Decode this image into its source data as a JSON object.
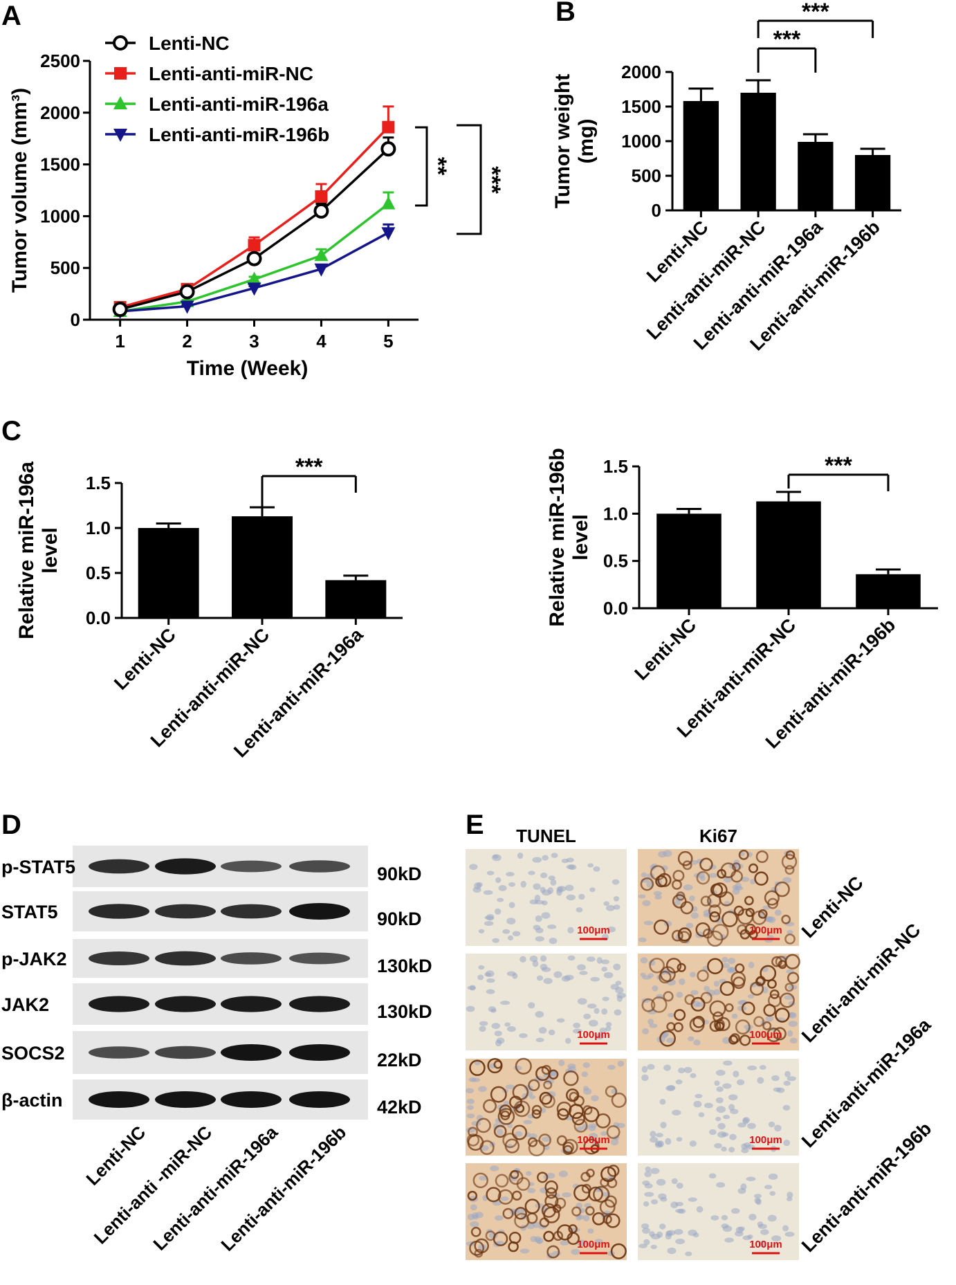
{
  "panels": {
    "A": "A",
    "B": "B",
    "C": "C",
    "D": "D",
    "E": "E"
  },
  "colors": {
    "lenti_nc": "#000000",
    "anti_nc": "#e8201c",
    "anti_196a": "#2ec42e",
    "anti_196b": "#15158a",
    "bar_fill": "#000000",
    "scale_bar": "#dd1111"
  },
  "chart_data": [
    {
      "id": "A",
      "type": "line",
      "xlabel": "Time (Week)",
      "ylabel": "Tumor volume (mm³)",
      "x": [
        1,
        2,
        3,
        4,
        5
      ],
      "xlim": [
        0.55,
        5.45
      ],
      "ylim": [
        0,
        2500
      ],
      "yticks": [
        0,
        500,
        1000,
        1500,
        2000,
        2500
      ],
      "legend_position": "top-left",
      "series": [
        {
          "name": "Lenti-NC",
          "marker": "circle-open",
          "color": "#000000",
          "values": [
            100,
            270,
            590,
            1050,
            1650
          ],
          "errors": [
            15,
            20,
            45,
            70,
            110
          ]
        },
        {
          "name": "Lenti-anti-miR-NC",
          "marker": "square",
          "color": "#e8201c",
          "values": [
            120,
            295,
            720,
            1190,
            1860
          ],
          "errors": [
            15,
            25,
            75,
            120,
            200
          ]
        },
        {
          "name": "Lenti-anti-miR-196a",
          "marker": "triangle-up",
          "color": "#2ec42e",
          "values": [
            80,
            175,
            390,
            620,
            1120
          ],
          "errors": [
            12,
            15,
            25,
            60,
            110
          ]
        },
        {
          "name": "Lenti-anti-miR-196b",
          "marker": "triangle-down",
          "color": "#15158a",
          "values": [
            80,
            130,
            305,
            490,
            840
          ],
          "errors": [
            10,
            12,
            20,
            25,
            80
          ]
        }
      ],
      "significance": [
        {
          "label": "**"
        },
        {
          "label": "***"
        }
      ]
    },
    {
      "id": "B",
      "type": "bar",
      "ylabel": "Tumor weight (mg)",
      "ylim": [
        0,
        2000
      ],
      "yticks": [
        0,
        500,
        1000,
        1500,
        2000
      ],
      "categories": [
        "Lenti-NC",
        "Lenti-anti-miR-NC",
        "Lenti-anti-miR-196a",
        "Lenti-anti-miR-196b"
      ],
      "values": [
        1580,
        1700,
        990,
        800
      ],
      "errors": [
        180,
        180,
        110,
        90
      ],
      "significance": [
        {
          "from": 1,
          "to": 2,
          "label": "***"
        },
        {
          "from": 1,
          "to": 3,
          "label": "***"
        }
      ]
    },
    {
      "id": "C1",
      "type": "bar",
      "ylabel": "Relative miR-196a level",
      "ylim": [
        0,
        1.5
      ],
      "yticks": [
        0.0,
        0.5,
        1.0,
        1.5
      ],
      "categories": [
        "Lenti-NC",
        "Lenti-anti-miR-NC",
        "Lenti-anti-miR-196a"
      ],
      "values": [
        1.0,
        1.13,
        0.42
      ],
      "errors": [
        0.05,
        0.1,
        0.05
      ],
      "significance": [
        {
          "from": 1,
          "to": 2,
          "label": "***"
        }
      ]
    },
    {
      "id": "C2",
      "type": "bar",
      "ylabel": "Relative miR-196b level",
      "ylim": [
        0,
        1.5
      ],
      "yticks": [
        0.0,
        0.5,
        1.0,
        1.5
      ],
      "categories": [
        "Lenti-NC",
        "Lenti-anti-miR-NC",
        "Lenti-anti-miR-196b"
      ],
      "values": [
        1.0,
        1.13,
        0.36
      ],
      "errors": [
        0.05,
        0.1,
        0.05
      ],
      "significance": [
        {
          "from": 1,
          "to": 2,
          "label": "***"
        }
      ]
    }
  ],
  "western_blot": {
    "rows": [
      {
        "protein": "p-STAT5",
        "size": "90kD",
        "intensity": [
          0.8,
          0.95,
          0.55,
          0.6
        ]
      },
      {
        "protein": "STAT5",
        "size": "90kD",
        "intensity": [
          0.85,
          0.8,
          0.8,
          1.0
        ]
      },
      {
        "protein": "p-JAK2",
        "size": "130kD",
        "intensity": [
          0.75,
          0.8,
          0.6,
          0.55
        ]
      },
      {
        "protein": "JAK2",
        "size": "130kD",
        "intensity": [
          0.95,
          0.95,
          0.95,
          0.95
        ]
      },
      {
        "protein": "SOCS2",
        "size": "22kD",
        "intensity": [
          0.6,
          0.65,
          1.0,
          1.0
        ]
      },
      {
        "protein": "β-actin",
        "size": "42kD",
        "intensity": [
          1.0,
          1.0,
          1.0,
          1.0
        ]
      }
    ],
    "lanes": [
      "Lenti-NC",
      "Lenti-anti -miR-NC",
      "Lenti-anti-miR-196a",
      "Lenti-anti-miR-196b"
    ]
  },
  "ihc": {
    "columns": [
      "TUNEL",
      "Ki67"
    ],
    "rows": [
      "Lenti-NC",
      "Lenti-anti-miR-NC",
      "Lenti-anti-miR-196a",
      "Lenti-anti-miR-196b"
    ],
    "scale_label": "100μm",
    "stain": [
      [
        0.05,
        0.85
      ],
      [
        0.05,
        0.8
      ],
      [
        0.85,
        0.05
      ],
      [
        0.9,
        0.03
      ]
    ]
  }
}
